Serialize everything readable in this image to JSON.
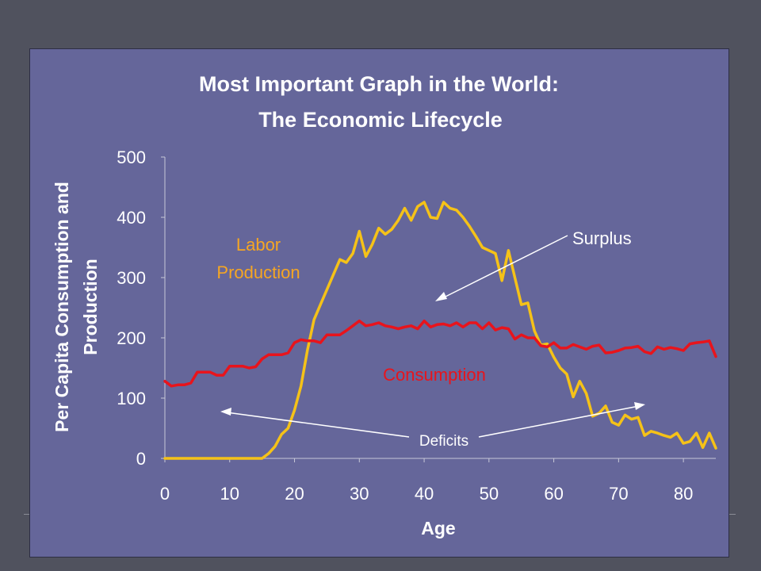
{
  "chart_data": {
    "type": "line",
    "title_line1": "Most Important Graph in the World:",
    "title_line2": "The Economic Lifecycle",
    "xlabel": "Age",
    "ylabel_line1": "Per Capita Consumption and",
    "ylabel_line2": "Production",
    "xlim": [
      0,
      85
    ],
    "ylim": [
      0,
      500
    ],
    "x_ticks": [
      "0",
      "10",
      "20",
      "30",
      "40",
      "50",
      "60",
      "70",
      "80"
    ],
    "y_ticks": [
      "0",
      "100",
      "200",
      "300",
      "400",
      "500"
    ],
    "colors": {
      "labor": "#f5c218",
      "consumption": "#e8141c",
      "label_labor": "#f5a623",
      "label_consumption": "#e8141c",
      "background": "#65669a"
    },
    "series": [
      {
        "name": "Labor Production",
        "color": "#f5c218",
        "x": [
          0,
          1,
          2,
          3,
          4,
          5,
          6,
          7,
          8,
          9,
          10,
          11,
          12,
          13,
          14,
          15,
          16,
          17,
          18,
          19,
          20,
          21,
          22,
          23,
          24,
          25,
          26,
          27,
          28,
          29,
          30,
          31,
          32,
          33,
          34,
          35,
          36,
          37,
          38,
          39,
          40,
          41,
          42,
          43,
          44,
          45,
          46,
          47,
          48,
          49,
          50,
          51,
          52,
          53,
          54,
          55,
          56,
          57,
          58,
          59,
          60,
          61,
          62,
          63,
          64,
          65,
          66,
          67,
          68,
          69,
          70,
          71,
          72,
          73,
          74,
          75,
          76,
          77,
          78,
          79,
          80,
          81,
          82,
          83,
          84,
          85
        ],
        "values": [
          0,
          0,
          0,
          0,
          0,
          0,
          0,
          0,
          0,
          0,
          0,
          0,
          0,
          0,
          0,
          0,
          8,
          20,
          40,
          50,
          80,
          120,
          180,
          230,
          255,
          280,
          305,
          330,
          325,
          340,
          377,
          335,
          355,
          382,
          372,
          380,
          395,
          415,
          395,
          418,
          425,
          400,
          398,
          425,
          415,
          412,
          400,
          385,
          368,
          350,
          345,
          340,
          295,
          345,
          300,
          255,
          258,
          212,
          188,
          190,
          168,
          150,
          140,
          102,
          128,
          108,
          70,
          75,
          87,
          60,
          55,
          72,
          65,
          68,
          38,
          45,
          42,
          38,
          35,
          42,
          25,
          28,
          42,
          18,
          42,
          17
        ]
      },
      {
        "name": "Consumption",
        "color": "#e8141c",
        "x": [
          0,
          1,
          2,
          3,
          4,
          5,
          6,
          7,
          8,
          9,
          10,
          11,
          12,
          13,
          14,
          15,
          16,
          17,
          18,
          19,
          20,
          21,
          22,
          23,
          24,
          25,
          26,
          27,
          28,
          29,
          30,
          31,
          32,
          33,
          34,
          35,
          36,
          37,
          38,
          39,
          40,
          41,
          42,
          43,
          44,
          45,
          46,
          47,
          48,
          49,
          50,
          51,
          52,
          53,
          54,
          55,
          56,
          57,
          58,
          59,
          60,
          61,
          62,
          63,
          64,
          65,
          66,
          67,
          68,
          69,
          70,
          71,
          72,
          73,
          74,
          75,
          76,
          77,
          78,
          79,
          80,
          81,
          82,
          83,
          84,
          85
        ],
        "values": [
          128,
          120,
          122,
          122,
          125,
          143,
          143,
          143,
          138,
          138,
          153,
          153,
          153,
          150,
          152,
          165,
          172,
          172,
          172,
          175,
          192,
          197,
          195,
          195,
          192,
          205,
          205,
          205,
          212,
          220,
          228,
          220,
          222,
          225,
          220,
          218,
          215,
          218,
          220,
          215,
          228,
          218,
          222,
          223,
          220,
          225,
          218,
          225,
          225,
          215,
          225,
          213,
          217,
          215,
          198,
          205,
          200,
          200,
          187,
          185,
          192,
          183,
          183,
          189,
          185,
          181,
          186,
          188,
          175,
          176,
          179,
          183,
          184,
          186,
          177,
          174,
          185,
          181,
          184,
          182,
          179,
          190,
          192,
          193,
          195,
          169
        ]
      }
    ],
    "annotations": {
      "labor_label_line1": "Labor",
      "labor_label_line2": "Production",
      "consumption_label": "Consumption",
      "surplus_label": "Surplus",
      "deficits_label": "Deficits"
    }
  }
}
